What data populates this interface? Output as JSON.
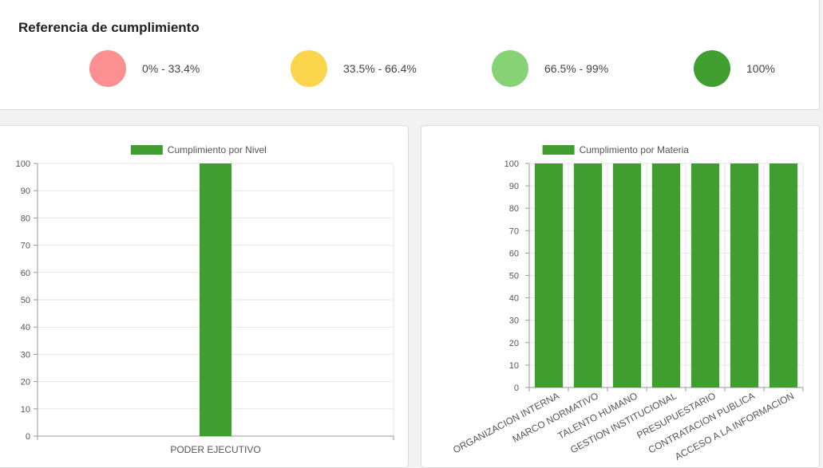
{
  "reference": {
    "title": "Referencia de cumplimiento",
    "items": [
      {
        "label": "0% - 33.4%",
        "color": "#fc8f8f"
      },
      {
        "label": "33.5% - 66.4%",
        "color": "#fad54b"
      },
      {
        "label": "66.5% - 99%",
        "color": "#86d274"
      },
      {
        "label": "100%",
        "color": "#3f9e2f"
      }
    ]
  },
  "chart_data": [
    {
      "type": "bar",
      "categories": [
        "PODER EJECUTIVO"
      ],
      "series": [
        {
          "name": "Cumplimiento por Nivel",
          "values": [
            100
          ],
          "color": "#3f9e2f"
        }
      ],
      "ylim": [
        0,
        100
      ],
      "yticks": [
        0,
        10,
        20,
        30,
        40,
        50,
        60,
        70,
        80,
        90,
        100
      ],
      "grid": true,
      "legend": "top"
    },
    {
      "type": "bar",
      "categories": [
        "ORGANIZACION INTERNA",
        "MARCO NORMATIVO",
        "TALENTO HUMANO",
        "GESTION INSTITUCIONAL",
        "PRESUPUESTARIO",
        "CONTRATACION PUBLICA",
        "ACCESO A LA INFORMACION"
      ],
      "series": [
        {
          "name": "Cumplimiento por Materia",
          "values": [
            100,
            100,
            100,
            100,
            100,
            100,
            100
          ],
          "color": "#3f9e2f"
        }
      ],
      "ylim": [
        0,
        100
      ],
      "yticks": [
        0,
        10,
        20,
        30,
        40,
        50,
        60,
        70,
        80,
        90,
        100
      ],
      "grid": true,
      "legend": "top"
    }
  ]
}
